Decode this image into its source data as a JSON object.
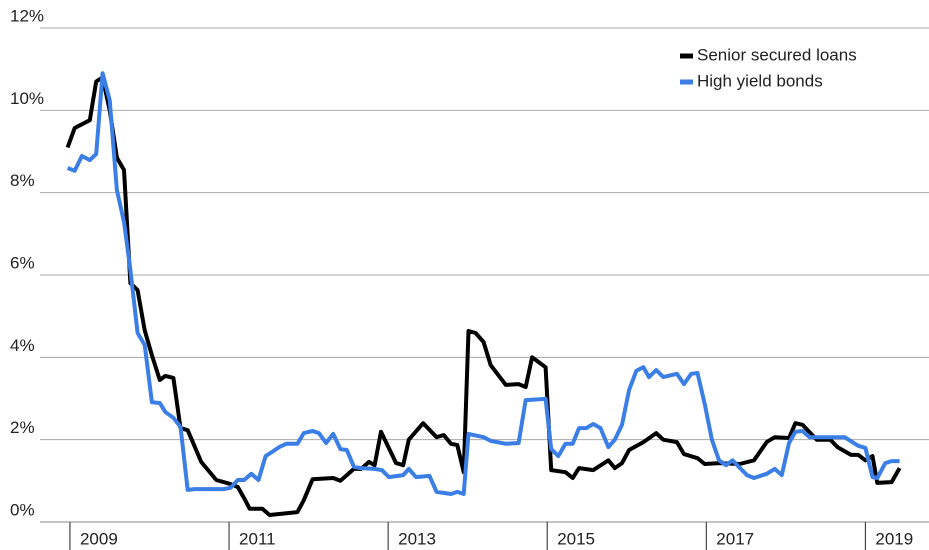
{
  "chart_data": {
    "type": "line",
    "xlim": [
      2008.9,
      2019.8
    ],
    "xticks": [
      2009,
      2011,
      2013,
      2015,
      2017,
      2019
    ],
    "ylim": [
      0,
      12
    ],
    "yticks": [
      {
        "value": 0,
        "label": "0%"
      },
      {
        "value": 2,
        "label": "2%"
      },
      {
        "value": 4,
        "label": "4%"
      },
      {
        "value": 6,
        "label": "6%"
      },
      {
        "value": 8,
        "label": "8%"
      },
      {
        "value": 10,
        "label": "10%"
      },
      {
        "value": 12,
        "label": "12%"
      }
    ],
    "grid": true,
    "legend": "upper right",
    "series": [
      {
        "name": "Senior secured loans",
        "color": "#000000",
        "x": [
          2008.97,
          2009.06,
          2009.25,
          2009.33,
          2009.41,
          2009.5,
          2009.59,
          2009.68,
          2009.76,
          2009.85,
          2009.94,
          2010.03,
          2010.13,
          2010.2,
          2010.3,
          2010.39,
          2010.48,
          2010.65,
          2010.84,
          2011.02,
          2011.11,
          2011.19,
          2011.26,
          2011.42,
          2011.51,
          2011.86,
          2011.94,
          2012.05,
          2012.31,
          2012.4,
          2012.57,
          2012.66,
          2012.76,
          2012.83,
          2012.91,
          2013.1,
          2013.19,
          2013.26,
          2013.44,
          2013.61,
          2013.7,
          2013.79,
          2013.87,
          2013.95,
          2014.01,
          2014.1,
          2014.2,
          2014.29,
          2014.48,
          2014.64,
          2014.73,
          2014.81,
          2014.98,
          2015.05,
          2015.23,
          2015.32,
          2015.4,
          2015.58,
          2015.77,
          2015.85,
          2015.94,
          2016.03,
          2016.21,
          2016.37,
          2016.46,
          2016.63,
          2016.72,
          2016.89,
          2016.98,
          2017.16,
          2017.42,
          2017.6,
          2017.76,
          2017.86,
          2018.04,
          2018.12,
          2018.21,
          2018.39,
          2018.56,
          2018.65,
          2018.82,
          2018.91,
          2019.0,
          2019.09,
          2019.15,
          2019.33,
          2019.43
        ],
        "values": [
          9.1,
          9.57,
          9.76,
          10.7,
          10.8,
          10.0,
          8.85,
          8.55,
          5.8,
          5.63,
          4.66,
          4.05,
          3.45,
          3.55,
          3.5,
          2.28,
          2.23,
          1.46,
          1.02,
          0.92,
          0.85,
          0.58,
          0.32,
          0.32,
          0.17,
          0.24,
          0.53,
          1.04,
          1.07,
          1.0,
          1.29,
          1.29,
          1.46,
          1.38,
          2.19,
          1.43,
          1.38,
          2.0,
          2.4,
          2.06,
          2.11,
          1.9,
          1.87,
          1.21,
          4.64,
          4.59,
          4.37,
          3.81,
          3.33,
          3.35,
          3.28,
          4.0,
          3.76,
          1.26,
          1.21,
          1.07,
          1.31,
          1.26,
          1.5,
          1.31,
          1.43,
          1.75,
          1.94,
          2.16,
          2.0,
          1.94,
          1.65,
          1.55,
          1.41,
          1.43,
          1.41,
          1.5,
          1.94,
          2.06,
          2.04,
          2.4,
          2.36,
          2.0,
          2.0,
          1.82,
          1.63,
          1.63,
          1.5,
          1.6,
          0.95,
          0.97,
          1.31
        ]
      },
      {
        "name": "High yield bonds",
        "color": "#3a7ee6",
        "x": [
          2008.97,
          2009.06,
          2009.15,
          2009.25,
          2009.33,
          2009.41,
          2009.5,
          2009.59,
          2009.68,
          2009.76,
          2009.85,
          2009.94,
          2010.03,
          2010.13,
          2010.2,
          2010.3,
          2010.39,
          2010.48,
          2010.57,
          2010.75,
          2010.93,
          2011.02,
          2011.11,
          2011.19,
          2011.28,
          2011.37,
          2011.46,
          2011.54,
          2011.63,
          2011.72,
          2011.86,
          2011.94,
          2012.05,
          2012.13,
          2012.22,
          2012.31,
          2012.4,
          2012.48,
          2012.57,
          2012.66,
          2012.83,
          2012.92,
          2013.01,
          2013.19,
          2013.26,
          2013.35,
          2013.52,
          2013.61,
          2013.79,
          2013.87,
          2013.95,
          2014.01,
          2014.2,
          2014.29,
          2014.48,
          2014.64,
          2014.73,
          2014.98,
          2015.05,
          2015.14,
          2015.23,
          2015.32,
          2015.4,
          2015.49,
          2015.58,
          2015.67,
          2015.77,
          2015.85,
          2015.94,
          2016.03,
          2016.12,
          2016.21,
          2016.28,
          2016.37,
          2016.46,
          2016.63,
          2016.72,
          2016.81,
          2016.89,
          2016.98,
          2017.07,
          2017.16,
          2017.25,
          2017.33,
          2017.51,
          2017.6,
          2017.76,
          2017.86,
          2017.95,
          2018.04,
          2018.12,
          2018.21,
          2018.3,
          2018.47,
          2018.74,
          2018.91,
          2019.0,
          2019.09,
          2019.15,
          2019.25,
          2019.33,
          2019.43
        ],
        "values": [
          8.6,
          8.53,
          8.89,
          8.79,
          8.94,
          10.9,
          10.25,
          8.06,
          7.29,
          6.12,
          4.59,
          4.3,
          2.91,
          2.89,
          2.67,
          2.53,
          2.31,
          0.78,
          0.8,
          0.8,
          0.8,
          0.83,
          1.02,
          1.02,
          1.17,
          1.02,
          1.6,
          1.7,
          1.82,
          1.9,
          1.9,
          2.16,
          2.21,
          2.16,
          1.92,
          2.14,
          1.77,
          1.75,
          1.34,
          1.31,
          1.29,
          1.26,
          1.09,
          1.14,
          1.29,
          1.09,
          1.12,
          0.73,
          0.68,
          0.73,
          0.68,
          2.14,
          2.06,
          1.97,
          1.9,
          1.92,
          2.96,
          2.99,
          1.77,
          1.6,
          1.9,
          1.9,
          2.28,
          2.28,
          2.38,
          2.28,
          1.82,
          2.0,
          2.36,
          3.21,
          3.67,
          3.76,
          3.52,
          3.69,
          3.52,
          3.6,
          3.35,
          3.6,
          3.62,
          2.87,
          2.0,
          1.5,
          1.38,
          1.5,
          1.14,
          1.07,
          1.17,
          1.29,
          1.14,
          1.92,
          2.19,
          2.21,
          2.06,
          2.06,
          2.06,
          1.85,
          1.8,
          1.09,
          1.07,
          1.43,
          1.48,
          1.48
        ]
      }
    ]
  }
}
